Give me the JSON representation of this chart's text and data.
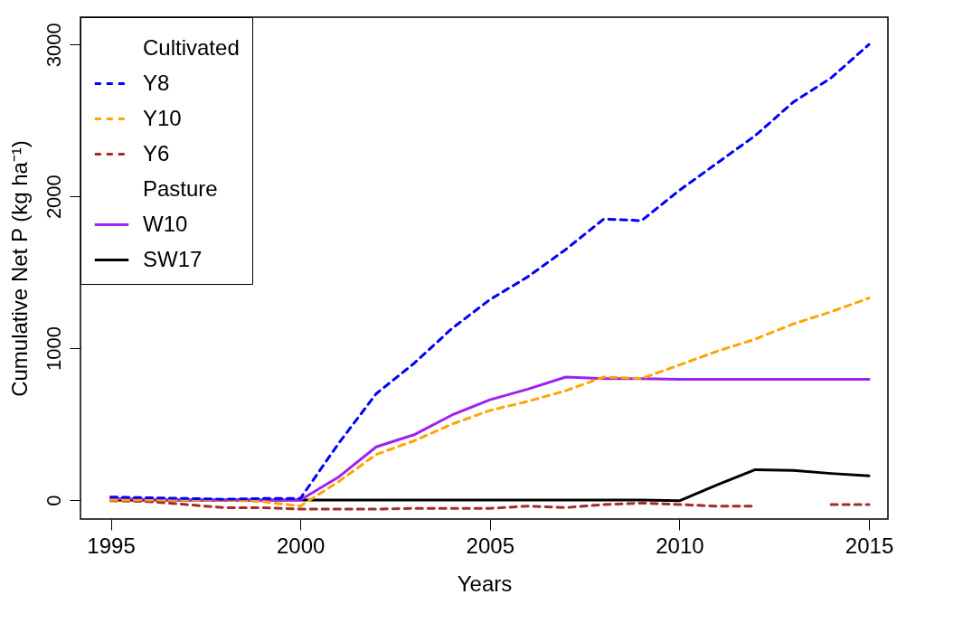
{
  "chart_data": {
    "type": "line",
    "xlabel": "Years",
    "ylabel": "Cumulative Net P (kg ha⁻¹)",
    "x": [
      1995,
      1996,
      1997,
      1998,
      1999,
      2000,
      2001,
      2002,
      2003,
      2004,
      2005,
      2006,
      2007,
      2008,
      2009,
      2010,
      2011,
      2012,
      2013,
      2014,
      2015
    ],
    "series": [
      {
        "name": "Y8",
        "color": "#0000ff",
        "line_style": "dashed",
        "values": [
          20,
          15,
          10,
          5,
          10,
          10,
          370,
          700,
          900,
          1130,
          1320,
          1470,
          1650,
          1850,
          1840,
          2040,
          2220,
          2400,
          2620,
          2780,
          3000
        ]
      },
      {
        "name": "Y10",
        "color": "#ffa500",
        "line_style": "dashed",
        "values": [
          0,
          0,
          0,
          0,
          -10,
          -40,
          120,
          300,
          390,
          500,
          590,
          650,
          720,
          810,
          800,
          890,
          980,
          1060,
          1160,
          1240,
          1330
        ]
      },
      {
        "name": "Y6",
        "color": "#a52a2a",
        "line_style": "dashed",
        "values": [
          -5,
          -10,
          -30,
          -50,
          -50,
          -60,
          -60,
          -60,
          -55,
          -55,
          -55,
          -40,
          -50,
          -30,
          -20,
          -30,
          -40,
          -40,
          null,
          -30,
          -30
        ]
      },
      {
        "name": "W10",
        "color": "#a020f0",
        "line_style": "solid",
        "values": [
          10,
          5,
          0,
          0,
          0,
          0,
          150,
          350,
          430,
          560,
          660,
          730,
          810,
          800,
          800,
          795,
          795,
          795,
          795,
          795,
          795
        ]
      },
      {
        "name": "SW17",
        "color": "#000000",
        "line_style": "solid",
        "values": [
          0,
          0,
          0,
          0,
          0,
          0,
          0,
          0,
          0,
          0,
          0,
          0,
          0,
          0,
          0,
          -5,
          100,
          200,
          195,
          175,
          160
        ]
      }
    ],
    "annotations": [
      "Cultivated",
      "Pasture"
    ],
    "xlim": [
      1994.2,
      2015.5
    ],
    "xticks": [
      1995,
      2000,
      2005,
      2010,
      2015
    ],
    "ylim": [
      -125,
      3180
    ],
    "yticks": [
      0,
      1000,
      2000,
      3000
    ],
    "grid": false,
    "legend": "top left"
  }
}
